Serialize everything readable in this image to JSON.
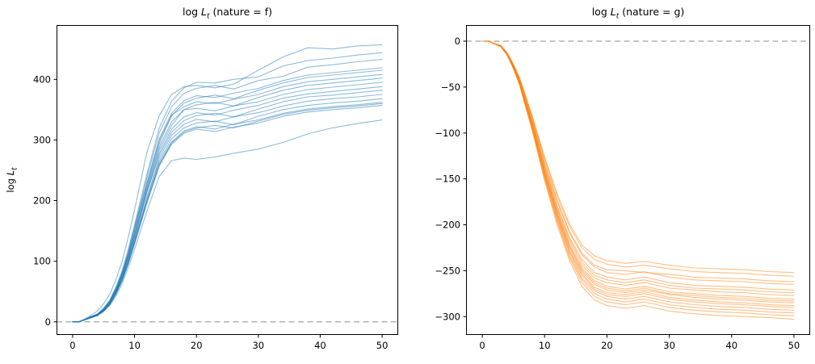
{
  "figure": {
    "background": "#ffffff",
    "ylabel": "log L_t",
    "ylabel_parts": {
      "func": "log ",
      "var": "L",
      "sub": "t"
    }
  },
  "chart_data": [
    {
      "type": "line",
      "title": "log L_t (nature = f)",
      "title_parts": {
        "func": "log ",
        "var": "L",
        "sub": "t",
        "rest": " (nature = f)"
      },
      "nature": "f",
      "line_color": "#1f77b4",
      "line_alpha": 0.5,
      "line_width": 1.1,
      "grid": false,
      "legend": "none",
      "xlim": [
        -2.6,
        52.6
      ],
      "ylim": [
        -21.5,
        489.5
      ],
      "xticks": [
        0,
        10,
        20,
        30,
        40,
        50
      ],
      "yticks": [
        0,
        100,
        200,
        300,
        400
      ],
      "zero_line": {
        "y": 0,
        "style": "dashed",
        "color": "#b3b3b3"
      },
      "x": [
        0,
        1,
        2,
        3,
        4,
        5,
        6,
        7,
        8,
        9,
        10,
        12,
        14,
        16,
        18,
        20,
        23,
        26,
        30,
        34,
        38,
        42,
        46,
        50
      ],
      "series": [
        {
          "y": [
            0,
            0,
            5,
            11,
            18,
            30,
            46,
            70,
            100,
            140,
            185,
            280,
            340,
            375,
            388,
            390,
            386,
            392,
            415,
            437,
            452,
            450,
            455,
            457
          ]
        },
        {
          "y": [
            0,
            0,
            4,
            9,
            13,
            22,
            36,
            58,
            84,
            120,
            160,
            244,
            320,
            364,
            386,
            395,
            394,
            400,
            404,
            422,
            431,
            435,
            440,
            444
          ]
        },
        {
          "y": [
            0,
            0,
            4,
            9,
            13,
            22,
            35,
            56,
            82,
            117,
            156,
            238,
            312,
            355,
            377,
            385,
            390,
            384,
            398,
            405,
            420,
            424,
            429,
            433
          ]
        },
        {
          "y": [
            0,
            0,
            4,
            8,
            13,
            21,
            34,
            54,
            80,
            113,
            151,
            230,
            302,
            344,
            365,
            373,
            370,
            377,
            385,
            398,
            407,
            411,
            415,
            419
          ]
        },
        {
          "y": [
            0,
            0,
            4,
            8,
            12,
            21,
            33,
            54,
            79,
            112,
            155,
            228,
            299,
            340,
            361,
            369,
            374,
            368,
            382,
            394,
            403,
            407,
            411,
            415
          ]
        },
        {
          "y": [
            0,
            0,
            4,
            8,
            12,
            20,
            33,
            53,
            78,
            110,
            147,
            224,
            294,
            341,
            355,
            363,
            360,
            367,
            375,
            388,
            396,
            400,
            404,
            408
          ]
        },
        {
          "y": [
            0,
            0,
            4,
            8,
            12,
            20,
            32,
            52,
            76,
            109,
            145,
            221,
            289,
            330,
            350,
            358,
            362,
            356,
            370,
            382,
            390,
            394,
            398,
            402
          ]
        },
        {
          "y": [
            0,
            0,
            4,
            8,
            12,
            20,
            32,
            51,
            75,
            107,
            142,
            217,
            284,
            324,
            350,
            352,
            348,
            356,
            363,
            375,
            383,
            387,
            391,
            395
          ]
        },
        {
          "y": [
            0,
            0,
            4,
            8,
            12,
            19,
            31,
            50,
            74,
            105,
            140,
            213,
            279,
            318,
            338,
            345,
            341,
            349,
            357,
            369,
            376,
            380,
            384,
            388
          ]
        },
        {
          "y": [
            0,
            0,
            4,
            8,
            11,
            19,
            31,
            50,
            73,
            103,
            138,
            216,
            275,
            313,
            332,
            340,
            344,
            338,
            351,
            363,
            371,
            374,
            378,
            382
          ]
        },
        {
          "y": [
            0,
            0,
            4,
            8,
            11,
            19,
            30,
            49,
            71,
            101,
            135,
            206,
            270,
            308,
            326,
            334,
            330,
            338,
            345,
            356,
            364,
            368,
            371,
            375
          ]
        },
        {
          "y": [
            0,
            0,
            4,
            7,
            11,
            18,
            29,
            48,
            70,
            99,
            132,
            202,
            265,
            302,
            320,
            328,
            331,
            325,
            339,
            350,
            357,
            361,
            364,
            368
          ]
        },
        {
          "y": [
            0,
            0,
            4,
            7,
            11,
            18,
            29,
            47,
            69,
            98,
            130,
            199,
            261,
            297,
            315,
            322,
            318,
            326,
            333,
            344,
            351,
            355,
            358,
            362
          ]
        },
        {
          "y": [
            0,
            0,
            4,
            7,
            11,
            18,
            29,
            47,
            68,
            97,
            130,
            198,
            259,
            295,
            313,
            320,
            324,
            320,
            331,
            342,
            349,
            353,
            356,
            360
          ]
        },
        {
          "y": [
            0,
            0,
            4,
            7,
            11,
            18,
            29,
            46,
            68,
            96,
            129,
            196,
            257,
            293,
            311,
            318,
            314,
            321,
            328,
            339,
            346,
            350,
            353,
            357
          ]
        },
        {
          "y": [
            0,
            0,
            3,
            7,
            10,
            17,
            27,
            43,
            63,
            90,
            120,
            183,
            240,
            266,
            270,
            268,
            272,
            278,
            285,
            296,
            310,
            320,
            327,
            333
          ]
        }
      ]
    },
    {
      "type": "line",
      "title": "log L_t (nature = g)",
      "title_parts": {
        "func": "log ",
        "var": "L",
        "sub": "t",
        "rest": " (nature = g)"
      },
      "nature": "g",
      "line_color": "#ff7f0e",
      "line_alpha": 0.5,
      "line_width": 1.1,
      "grid": false,
      "legend": "none",
      "xlim": [
        -2.6,
        52.6
      ],
      "ylim": [
        -320,
        17.6
      ],
      "xticks": [
        0,
        10,
        20,
        30,
        40,
        50
      ],
      "yticks": [
        0,
        -50,
        -100,
        -150,
        -200,
        -250,
        -300
      ],
      "zero_line": {
        "y": 0,
        "style": "dashed",
        "color": "#b3b3b3"
      },
      "x": [
        0,
        1,
        2,
        3,
        4,
        5,
        6,
        7,
        8,
        9,
        10,
        12,
        14,
        16,
        18,
        20,
        23,
        26,
        30,
        34,
        38,
        42,
        46,
        50
      ],
      "series": [
        {
          "y": [
            0,
            0,
            -3,
            -5,
            -13,
            -25,
            -40,
            -60,
            -81,
            -103,
            -126,
            -166,
            -199,
            -222,
            -234,
            -239,
            -242,
            -240,
            -244,
            -247,
            -248,
            -249,
            -251,
            -252
          ]
        },
        {
          "y": [
            0,
            0,
            -3,
            -5,
            -13,
            -26,
            -41,
            -61,
            -82,
            -105,
            -128,
            -169,
            -202,
            -225,
            -238,
            -243,
            -246,
            -244,
            -248,
            -251,
            -252,
            -253,
            -255,
            -256
          ]
        },
        {
          "y": [
            0,
            0,
            -3,
            -5,
            -13,
            -26,
            -42,
            -63,
            -84,
            -107,
            -131,
            -173,
            -207,
            -231,
            -244,
            -249,
            -250,
            -252,
            -254,
            -257,
            -258,
            -259,
            -261,
            -262
          ]
        },
        {
          "y": [
            0,
            0,
            -3,
            -5,
            -13,
            -27,
            -42,
            -64,
            -85,
            -109,
            -133,
            -175,
            -209,
            -233,
            -246,
            -252,
            -254,
            -251,
            -257,
            -260,
            -261,
            -262,
            -264,
            -265
          ]
        },
        {
          "y": [
            0,
            0,
            -3,
            -5,
            -14,
            -27,
            -43,
            -65,
            -87,
            -111,
            -136,
            -179,
            -214,
            -238,
            -252,
            -257,
            -260,
            -257,
            -263,
            -266,
            -267,
            -268,
            -270,
            -271
          ]
        },
        {
          "y": [
            0,
            0,
            -3,
            -5,
            -14,
            -27,
            -44,
            -66,
            -88,
            -112,
            -137,
            -181,
            -216,
            -241,
            -255,
            -260,
            -263,
            -260,
            -266,
            -269,
            -270,
            -271,
            -273,
            -274
          ]
        },
        {
          "y": [
            0,
            0,
            -3,
            -6,
            -14,
            -28,
            -44,
            -66,
            -89,
            -114,
            -139,
            -183,
            -219,
            -244,
            -258,
            -263,
            -266,
            -263,
            -269,
            -271,
            -273,
            -274,
            -276,
            -277
          ]
        },
        {
          "y": [
            0,
            0,
            -3,
            -6,
            -14,
            -28,
            -45,
            -67,
            -90,
            -115,
            -141,
            -185,
            -222,
            -247,
            -261,
            -267,
            -270,
            -267,
            -273,
            -275,
            -277,
            -278,
            -280,
            -281
          ]
        },
        {
          "y": [
            0,
            0,
            -3,
            -6,
            -14,
            -28,
            -45,
            -68,
            -91,
            -116,
            -142,
            -187,
            -224,
            -249,
            -263,
            -269,
            -272,
            -269,
            -275,
            -277,
            -279,
            -280,
            -282,
            -283
          ]
        },
        {
          "y": [
            0,
            0,
            -3,
            -6,
            -14,
            -29,
            -46,
            -68,
            -91,
            -117,
            -143,
            -188,
            -225,
            -251,
            -265,
            -271,
            -274,
            -271,
            -276,
            -279,
            -281,
            -282,
            -284,
            -285
          ]
        },
        {
          "y": [
            0,
            0,
            -3,
            -6,
            -14,
            -29,
            -46,
            -69,
            -92,
            -118,
            -144,
            -190,
            -228,
            -253,
            -268,
            -274,
            -276,
            -273,
            -279,
            -282,
            -284,
            -285,
            -287,
            -288
          ]
        },
        {
          "y": [
            0,
            0,
            -3,
            -6,
            -15,
            -29,
            -46,
            -70,
            -93,
            -119,
            -145,
            -191,
            -229,
            -255,
            -270,
            -276,
            -278,
            -275,
            -281,
            -284,
            -286,
            -287,
            -289,
            -290
          ]
        },
        {
          "y": [
            0,
            0,
            -3,
            -6,
            -15,
            -29,
            -47,
            -70,
            -94,
            -120,
            -147,
            -193,
            -231,
            -258,
            -272,
            -278,
            -281,
            -278,
            -284,
            -287,
            -289,
            -290,
            -292,
            -293
          ]
        },
        {
          "y": [
            0,
            0,
            -3,
            -6,
            -15,
            -30,
            -47,
            -71,
            -95,
            -121,
            -148,
            -195,
            -234,
            -260,
            -275,
            -281,
            -284,
            -281,
            -287,
            -290,
            -292,
            -293,
            -295,
            -296
          ]
        },
        {
          "y": [
            0,
            0,
            -3,
            -6,
            -15,
            -30,
            -48,
            -72,
            -96,
            -123,
            -150,
            -197,
            -236,
            -263,
            -278,
            -284,
            -287,
            -284,
            -290,
            -293,
            -295,
            -296,
            -298,
            -299
          ]
        },
        {
          "y": [
            0,
            0,
            -3,
            -6,
            -15,
            -30,
            -48,
            -73,
            -97,
            -124,
            -152,
            -200,
            -239,
            -267,
            -282,
            -288,
            -291,
            -288,
            -294,
            -297,
            -299,
            -300,
            -301,
            -303
          ]
        }
      ]
    }
  ]
}
